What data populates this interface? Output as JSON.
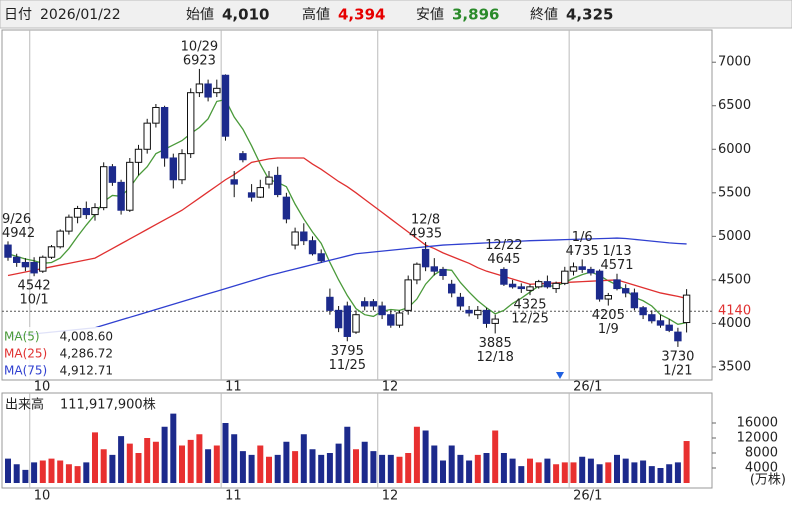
{
  "header": {
    "date_label": "日付",
    "date": "2026/01/22",
    "open_label": "始値",
    "open": "4,010",
    "high_label": "高値",
    "high": "4,394",
    "low_label": "安値",
    "low": "3,896",
    "close_label": "終値",
    "close": "4,325"
  },
  "chart_data": {
    "type": "candlestick",
    "categories": [
      null,
      null,
      null,
      "10",
      null,
      null,
      null,
      null,
      null,
      null,
      null,
      null,
      null,
      null,
      null,
      null,
      null,
      null,
      null,
      null,
      null,
      null,
      null,
      null,
      null,
      "11",
      null,
      null,
      null,
      null,
      null,
      null,
      null,
      null,
      null,
      null,
      null,
      null,
      null,
      null,
      null,
      null,
      null,
      "12",
      null,
      null,
      null,
      null,
      null,
      null,
      null,
      null,
      null,
      null,
      null,
      null,
      null,
      null,
      null,
      null,
      null,
      null,
      null,
      null,
      null,
      "26/1",
      null,
      null,
      null,
      null,
      null,
      null,
      null,
      null,
      null,
      null,
      null,
      null,
      null
    ],
    "ohlc": [
      [
        4900,
        4942,
        4720,
        4760
      ],
      [
        4760,
        4800,
        4650,
        4700
      ],
      [
        4700,
        4750,
        4600,
        4650
      ],
      [
        4700,
        4760,
        4542,
        4580
      ],
      [
        4600,
        4780,
        4580,
        4760
      ],
      [
        4760,
        4900,
        4740,
        4880
      ],
      [
        4880,
        5080,
        4860,
        5060
      ],
      [
        5060,
        5250,
        5020,
        5220
      ],
      [
        5220,
        5350,
        5150,
        5320
      ],
      [
        5320,
        5400,
        5200,
        5250
      ],
      [
        5250,
        5380,
        5180,
        5330
      ],
      [
        5330,
        5850,
        5300,
        5800
      ],
      [
        5800,
        5830,
        5580,
        5620
      ],
      [
        5620,
        5650,
        5250,
        5300
      ],
      [
        5300,
        5900,
        5280,
        5850
      ],
      [
        5850,
        6050,
        5700,
        6000
      ],
      [
        6000,
        6350,
        5950,
        6300
      ],
      [
        6300,
        6520,
        6250,
        6480
      ],
      [
        6480,
        6500,
        5800,
        5900
      ],
      [
        5900,
        5950,
        5550,
        5650
      ],
      [
        5650,
        6000,
        5600,
        5950
      ],
      [
        5950,
        6700,
        5900,
        6650
      ],
      [
        6650,
        6923,
        6600,
        6750
      ],
      [
        6750,
        6800,
        6550,
        6600
      ],
      [
        6650,
        6800,
        6600,
        6700
      ],
      [
        6850,
        6860,
        6100,
        6150
      ],
      [
        5650,
        5750,
        5450,
        5600
      ],
      [
        5950,
        5980,
        5850,
        5880
      ],
      [
        5500,
        5600,
        5400,
        5450
      ],
      [
        5450,
        5650,
        5440,
        5560
      ],
      [
        5600,
        5750,
        5550,
        5680
      ],
      [
        5700,
        5800,
        5450,
        5480
      ],
      [
        5450,
        5500,
        5150,
        5200
      ],
      [
        4900,
        5100,
        4850,
        5050
      ],
      [
        5050,
        5150,
        4900,
        4950
      ],
      [
        4950,
        5000,
        4780,
        4800
      ],
      [
        4800,
        4850,
        4700,
        4720
      ],
      [
        4300,
        4400,
        4100,
        4150
      ],
      [
        4150,
        4200,
        3900,
        3950
      ],
      [
        4200,
        4250,
        3795,
        3850
      ],
      [
        3900,
        4150,
        3880,
        4100
      ],
      [
        4250,
        4300,
        4150,
        4200
      ],
      [
        4250,
        4280,
        4150,
        4200
      ],
      [
        4200,
        4250,
        4050,
        4100
      ],
      [
        4100,
        4150,
        3950,
        3980
      ],
      [
        3980,
        4150,
        3950,
        4120
      ],
      [
        4150,
        4550,
        4100,
        4500
      ],
      [
        4500,
        4700,
        4450,
        4680
      ],
      [
        4850,
        4935,
        4600,
        4650
      ],
      [
        4650,
        4750,
        4550,
        4600
      ],
      [
        4620,
        4650,
        4500,
        4550
      ],
      [
        4450,
        4500,
        4300,
        4350
      ],
      [
        4300,
        4350,
        4150,
        4200
      ],
      [
        4150,
        4200,
        4080,
        4120
      ],
      [
        4100,
        4200,
        4050,
        4150
      ],
      [
        4150,
        4180,
        3950,
        4000
      ],
      [
        4000,
        4100,
        3885,
        4050
      ],
      [
        4620,
        4645,
        4430,
        4450
      ],
      [
        4450,
        4500,
        4400,
        4420
      ],
      [
        4420,
        4460,
        4350,
        4400
      ],
      [
        4380,
        4450,
        4325,
        4420
      ],
      [
        4420,
        4500,
        4400,
        4480
      ],
      [
        4480,
        4550,
        4400,
        4420
      ],
      [
        4400,
        4480,
        4350,
        4460
      ],
      [
        4460,
        4650,
        4440,
        4600
      ],
      [
        4600,
        4700,
        4550,
        4650
      ],
      [
        4650,
        4735,
        4580,
        4620
      ],
      [
        4620,
        4650,
        4550,
        4580
      ],
      [
        4600,
        4620,
        4250,
        4280
      ],
      [
        4280,
        4350,
        4205,
        4320
      ],
      [
        4500,
        4571,
        4380,
        4400
      ],
      [
        4400,
        4450,
        4300,
        4350
      ],
      [
        4350,
        4400,
        4150,
        4180
      ],
      [
        4180,
        4200,
        4050,
        4100
      ],
      [
        4100,
        4150,
        4000,
        4030
      ],
      [
        4030,
        4100,
        3950,
        3980
      ],
      [
        3980,
        4050,
        3900,
        3920
      ],
      [
        3900,
        3950,
        3730,
        3800
      ],
      [
        4010,
        4394,
        3896,
        4325
      ]
    ],
    "up_color": "#ffffff",
    "down_color": "#1c2a8c",
    "up_volume_color": "#e83030",
    "down_volume_color": "#1c2a8c",
    "series": [
      {
        "name": "MA(5)",
        "color": "#4a9a3a",
        "legend_value": "4,008.60",
        "values": [
          4800,
          4770,
          4740,
          4720,
          4690,
          4700,
          4750,
          4860,
          5000,
          5130,
          5250,
          5400,
          5470,
          5460,
          5560,
          5700,
          5800,
          5950,
          6000,
          6050,
          6100,
          6180,
          6250,
          6350,
          6550,
          6570,
          6370,
          6230,
          6040,
          5830,
          5650,
          5620,
          5570,
          5370,
          5200,
          5050,
          4920,
          4700,
          4500,
          4320,
          4170,
          4100,
          4080,
          4140,
          4160,
          4150,
          4180,
          4280,
          4450,
          4560,
          4620,
          4610,
          4470,
          4360,
          4260,
          4180,
          4110,
          4150,
          4230,
          4290,
          4360,
          4430,
          4430,
          4430,
          4470,
          4520,
          4560,
          4590,
          4550,
          4490,
          4440,
          4380,
          4300,
          4260,
          4200,
          4100,
          4050,
          3990,
          4008.6
        ]
      },
      {
        "name": "MA(25)",
        "color": "#e03030",
        "legend_value": "4,286.72",
        "values": [
          4550,
          4570,
          4590,
          4610,
          4630,
          4650,
          4670,
          4690,
          4710,
          4730,
          4750,
          4805,
          4860,
          4915,
          4970,
          5025,
          5080,
          5135,
          5190,
          5245,
          5300,
          5370,
          5440,
          5510,
          5580,
          5650,
          5710,
          5780,
          5850,
          5870,
          5890,
          5900,
          5900,
          5900,
          5900,
          5830,
          5770,
          5700,
          5630,
          5570,
          5500,
          5425,
          5350,
          5275,
          5200,
          5125,
          5050,
          4975,
          4900,
          4860,
          4810,
          4770,
          4730,
          4690,
          4640,
          4600,
          4570,
          4540,
          4510,
          4480,
          4450,
          4455,
          4460,
          4465,
          4470,
          4475,
          4480,
          4485,
          4490,
          4495,
          4500,
          4470,
          4440,
          4410,
          4380,
          4350,
          4330,
          4310,
          4286.72
        ]
      },
      {
        "name": "MA(75)",
        "color": "#3040d0",
        "legend_value": "4,912.71",
        "values": [
          3850,
          3860,
          3870,
          3880,
          3890,
          3900,
          3910,
          3920,
          3930,
          3940,
          3950,
          3980,
          4010,
          4040,
          4070,
          4100,
          4130,
          4160,
          4190,
          4220,
          4250,
          4280,
          4310,
          4340,
          4370,
          4400,
          4430,
          4460,
          4490,
          4520,
          4550,
          4575,
          4600,
          4625,
          4650,
          4675,
          4700,
          4725,
          4750,
          4775,
          4800,
          4810,
          4820,
          4830,
          4840,
          4850,
          4860,
          4870,
          4880,
          4890,
          4900,
          4905,
          4910,
          4915,
          4920,
          4925,
          4930,
          4935,
          4940,
          4945,
          4950,
          4953,
          4956,
          4959,
          4962,
          4965,
          4968,
          4971,
          4974,
          4977,
          4980,
          4975,
          4965,
          4955,
          4945,
          4935,
          4925,
          4918,
          4912.71
        ]
      }
    ],
    "ylim": [
      3350,
      7370
    ],
    "yticks": [
      3500,
      4000,
      4500,
      5000,
      5500,
      6000,
      6500,
      7000
    ],
    "price_line": {
      "value": 4140,
      "color": "#e03030"
    },
    "annotations": [
      {
        "date": "9/26",
        "value": 4942,
        "side": "high"
      },
      {
        "date": "10/1",
        "value": 4542,
        "side": "low"
      },
      {
        "date": "10/29",
        "value": 6923,
        "side": "high"
      },
      {
        "date": "11/25",
        "value": 3795,
        "side": "low"
      },
      {
        "date": "12/8",
        "value": 4935,
        "side": "high"
      },
      {
        "date": "12/18",
        "value": 3885,
        "side": "low"
      },
      {
        "date": "12/22",
        "value": 4645,
        "side": "high"
      },
      {
        "date": "12/25",
        "value": 4325,
        "side": "low"
      },
      {
        "date": "1/6",
        "value": 4735,
        "side": "high"
      },
      {
        "date": "1/13",
        "value": 4571,
        "side": "high"
      },
      {
        "date": "1/9",
        "value": 4205,
        "side": "low"
      },
      {
        "date": "1/21",
        "value": 3730,
        "side": "low"
      }
    ],
    "volume": {
      "title": "出来高",
      "label": "111,917,900株",
      "unit": "(万株)",
      "ylim": [
        0,
        24000
      ],
      "yticks": [
        4000,
        8000,
        12000,
        16000
      ],
      "values": [
        6500,
        5000,
        3500,
        5500,
        6000,
        6500,
        6000,
        5000,
        4500,
        5500,
        13500,
        9000,
        7500,
        12500,
        10500,
        8000,
        12000,
        11000,
        15000,
        18500,
        10000,
        11500,
        13000,
        9000,
        10000,
        16000,
        13000,
        8500,
        7500,
        10000,
        7000,
        7500,
        11000,
        8500,
        13000,
        9000,
        7500,
        8000,
        10500,
        15000,
        9000,
        11000,
        8500,
        7500,
        7500,
        7000,
        8000,
        15000,
        14000,
        10000,
        6000,
        10000,
        7500,
        6000,
        7500,
        8000,
        14000,
        8000,
        6500,
        4500,
        6500,
        5500,
        6500,
        5000,
        5500,
        5500,
        7000,
        6500,
        5000,
        5500,
        7500,
        6500,
        5500,
        6000,
        4500,
        4000,
        5000,
        5500,
        11191.79
      ]
    }
  }
}
